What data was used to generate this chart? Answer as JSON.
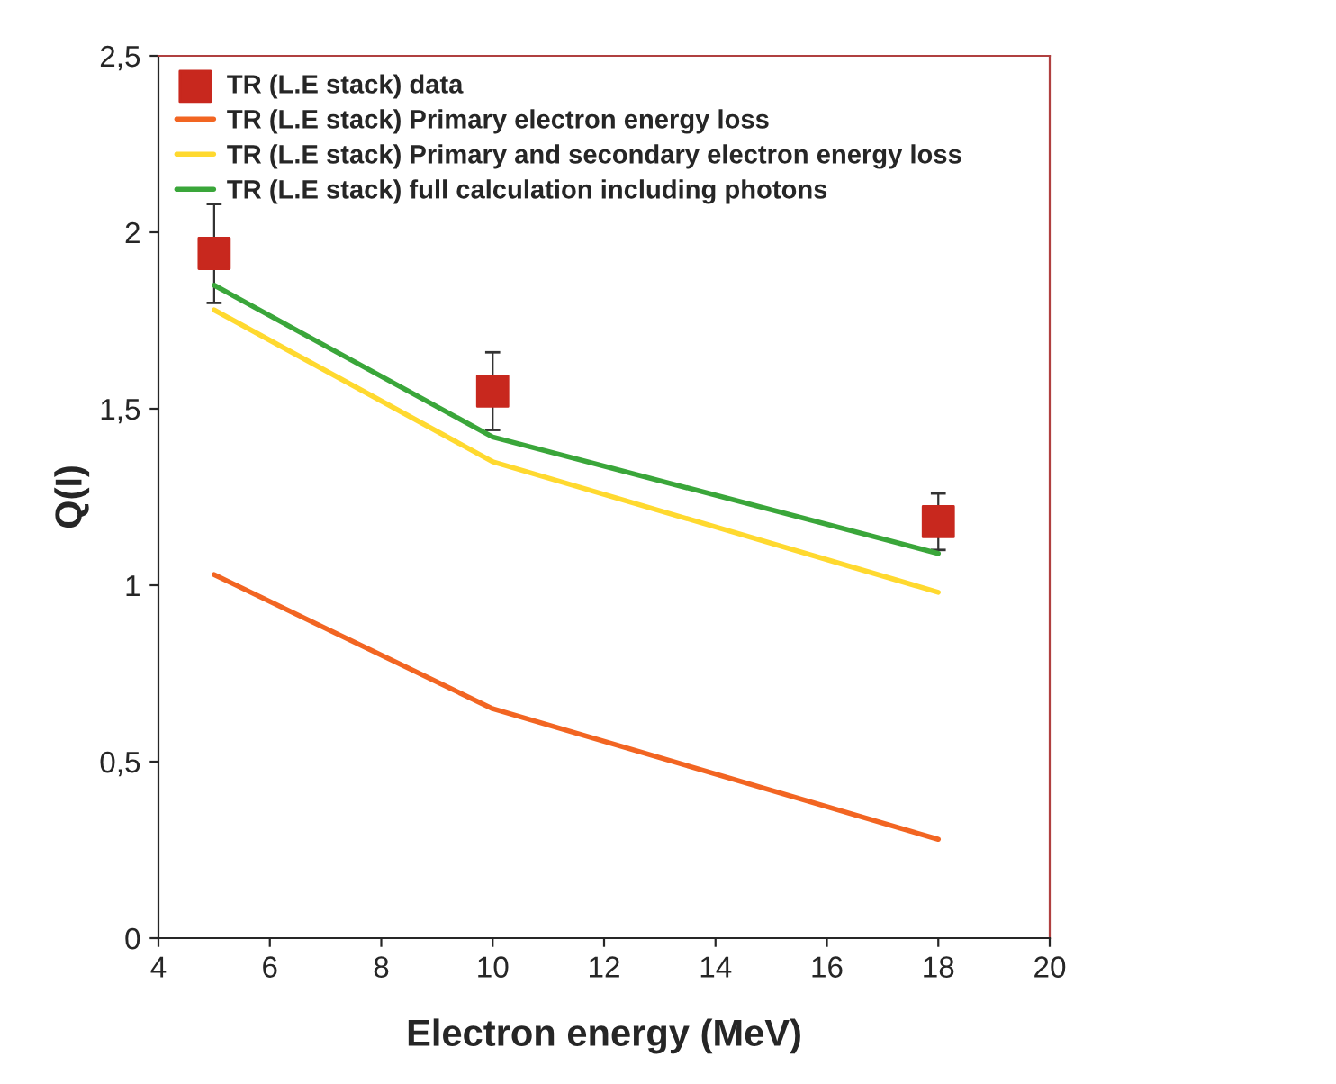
{
  "chart_data": {
    "type": "line",
    "xlabel": "Electron energy (MeV)",
    "ylabel": "Q(I)",
    "xlim": [
      4,
      20
    ],
    "xticks": [
      4,
      6,
      8,
      10,
      12,
      14,
      16,
      18,
      20
    ],
    "ylim": [
      0,
      2.5
    ],
    "yticks": [
      {
        "value": 0,
        "label": "0"
      },
      {
        "value": 0.5,
        "label": "0,5"
      },
      {
        "value": 1,
        "label": "1"
      },
      {
        "value": 1.5,
        "label": "1,5"
      },
      {
        "value": 2,
        "label": "2"
      },
      {
        "value": 2.5,
        "label": "2,5"
      }
    ],
    "grid": false,
    "legend": "top left",
    "series": [
      {
        "name": "TR (L.E stack) data",
        "type": "scatter",
        "marker": "square",
        "color": "#c8281e",
        "x": [
          5,
          10,
          18
        ],
        "values": [
          1.94,
          1.55,
          1.18
        ],
        "errors": [
          0.14,
          0.11,
          0.08
        ]
      },
      {
        "name": "TR (L.E stack) Primary electron energy loss",
        "color": "#f26522",
        "x": [
          5,
          10,
          18
        ],
        "values": [
          1.03,
          0.65,
          0.28
        ]
      },
      {
        "name": "TR (L.E stack) Primary and secondary electron energy loss",
        "color": "#ffd92f",
        "x": [
          5,
          10,
          18
        ],
        "values": [
          1.78,
          1.35,
          0.98
        ]
      },
      {
        "name": "TR (L.E stack) full calculation including photons",
        "color": "#3aa63a",
        "x": [
          5,
          10,
          18
        ],
        "values": [
          1.85,
          1.42,
          1.09
        ]
      }
    ]
  }
}
